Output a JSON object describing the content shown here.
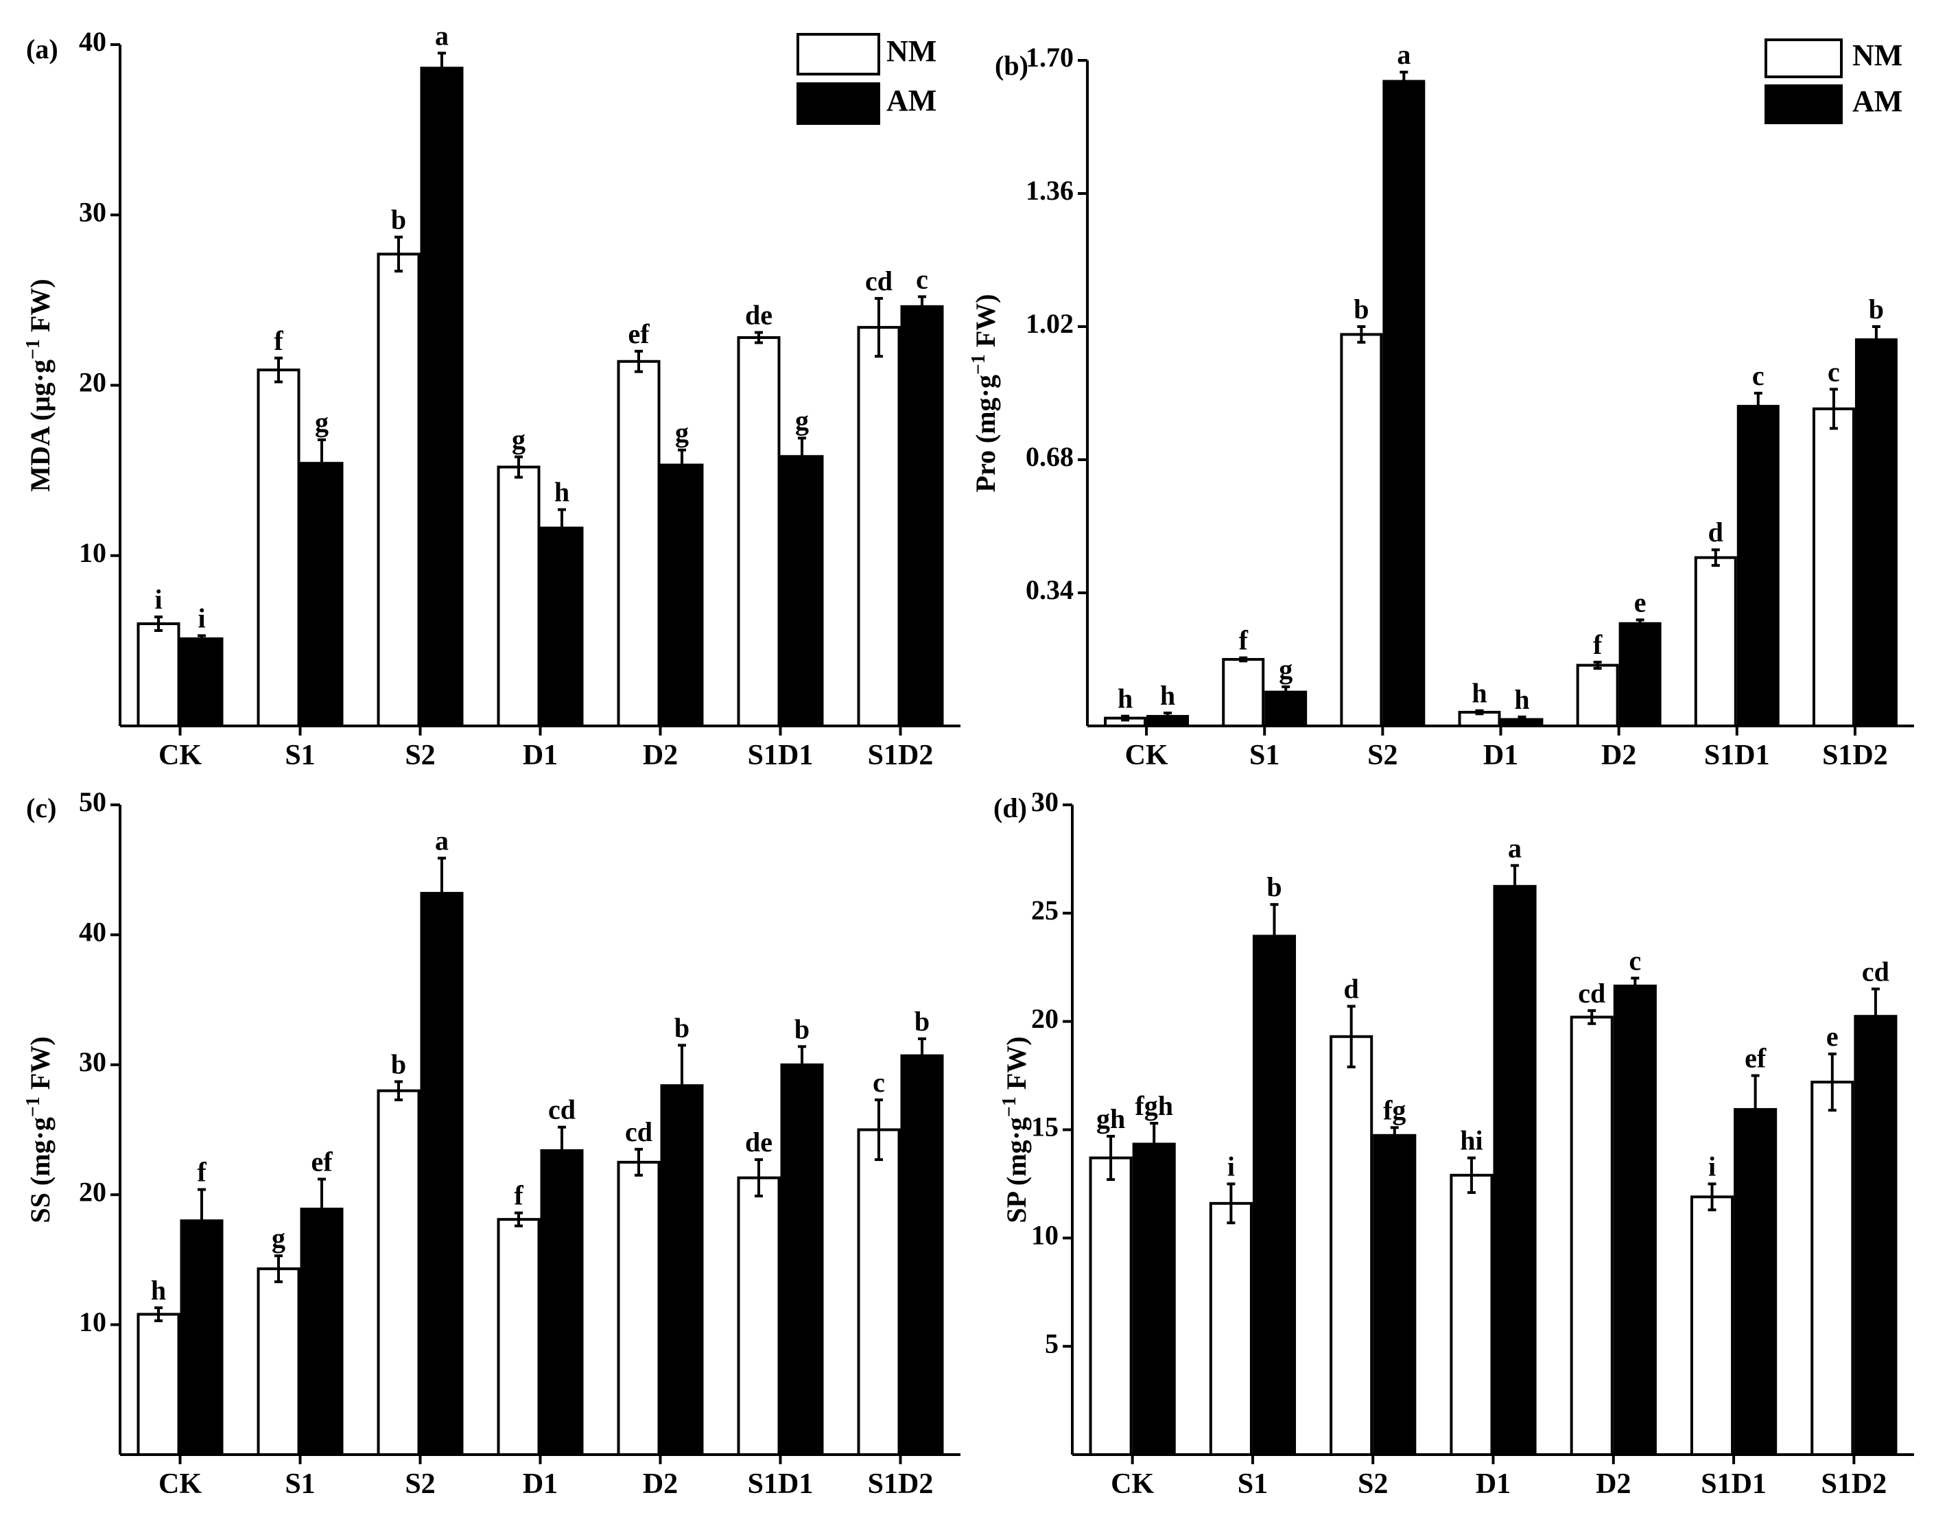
{
  "categories": [
    "CK",
    "S1",
    "S2",
    "D1",
    "D2",
    "S1D1",
    "S1D2"
  ],
  "legend": {
    "nm_label": "NM",
    "am_label": "AM"
  },
  "colors": {
    "nm_fill": "#ffffff",
    "am_fill": "#000000",
    "stroke": "#000000"
  },
  "chart_data": [
    {
      "id": "a",
      "type": "bar",
      "panel_label": "(a)",
      "ylabel": "MDA (μg·g⁻¹ FW)",
      "ylabel_parts": [
        "MDA (μg·g",
        "−1",
        " FW)"
      ],
      "ylim": [
        0,
        40
      ],
      "yticks": [
        10,
        20,
        30,
        40
      ],
      "tick_labels": [
        "10",
        "20",
        "30",
        "40"
      ],
      "legend_position": "top-right",
      "series": [
        {
          "name": "NM",
          "values": [
            6.0,
            20.9,
            27.7,
            15.2,
            21.4,
            22.8,
            23.4
          ],
          "errors": [
            0.4,
            0.7,
            1.0,
            0.6,
            0.6,
            0.3,
            1.7
          ],
          "letters": [
            "i",
            "f",
            "b",
            "g",
            "ef",
            "de",
            "cd"
          ]
        },
        {
          "name": "AM",
          "values": [
            5.2,
            15.5,
            38.7,
            11.7,
            15.4,
            15.9,
            24.7
          ],
          "errors": [
            0.1,
            1.3,
            0.8,
            1.0,
            0.8,
            1.0,
            0.5
          ],
          "letters": [
            "i",
            "g",
            "a",
            "h",
            "g",
            "g",
            "c"
          ]
        }
      ]
    },
    {
      "id": "b",
      "type": "bar",
      "panel_label": "(b)",
      "ylabel": "Pro (mg·g⁻¹ FW)",
      "ylabel_parts": [
        "Pro (mg·g",
        "−1",
        " FW)"
      ],
      "ylim": [
        0,
        1.7
      ],
      "yticks": [
        0.34,
        0.68,
        1.02,
        1.36,
        1.7
      ],
      "tick_labels": [
        "0.34",
        "0.68",
        "1.02",
        "1.36",
        "1.70"
      ],
      "legend_position": "top-right",
      "series": [
        {
          "name": "NM",
          "values": [
            0.02,
            0.17,
            1.0,
            0.035,
            0.155,
            0.43,
            0.81
          ],
          "errors": [
            0.005,
            0.004,
            0.02,
            0.004,
            0.008,
            0.02,
            0.05
          ],
          "letters": [
            "h",
            "f",
            "b",
            "h",
            "f",
            "d",
            "c"
          ]
        },
        {
          "name": "AM",
          "values": [
            0.028,
            0.09,
            1.65,
            0.02,
            0.265,
            0.82,
            0.99
          ],
          "errors": [
            0.005,
            0.01,
            0.02,
            0.003,
            0.006,
            0.03,
            0.03
          ],
          "letters": [
            "h",
            "g",
            "a",
            "h",
            "e",
            "c",
            "b"
          ]
        }
      ]
    },
    {
      "id": "c",
      "type": "bar",
      "panel_label": "(c)",
      "ylabel": "SS (mg·g⁻¹ FW)",
      "ylabel_parts": [
        "SS (mg·g",
        "−1",
        " FW)"
      ],
      "ylim": [
        0,
        50
      ],
      "yticks": [
        10,
        20,
        30,
        40,
        50
      ],
      "tick_labels": [
        "10",
        "20",
        "30",
        "40",
        "50"
      ],
      "legend_position": "none",
      "series": [
        {
          "name": "NM",
          "values": [
            10.8,
            14.3,
            28.0,
            18.1,
            22.5,
            21.3,
            25.0
          ],
          "errors": [
            0.5,
            1.0,
            0.7,
            0.5,
            1.0,
            1.4,
            2.3
          ],
          "letters": [
            "h",
            "g",
            "b",
            "f",
            "cd",
            "de",
            "c"
          ]
        },
        {
          "name": "AM",
          "values": [
            18.1,
            19.0,
            43.3,
            23.5,
            28.5,
            30.1,
            30.8
          ],
          "errors": [
            2.3,
            2.2,
            2.6,
            1.7,
            3.0,
            1.3,
            1.2
          ],
          "letters": [
            "f",
            "ef",
            "a",
            "cd",
            "b",
            "b",
            "b"
          ]
        }
      ]
    },
    {
      "id": "d",
      "type": "bar",
      "panel_label": "(d)",
      "ylabel": "SP (mg·g⁻¹ FW)",
      "ylabel_parts": [
        "SP (mg·g",
        "−1",
        " FW)"
      ],
      "ylim": [
        0,
        30
      ],
      "yticks": [
        5,
        10,
        15,
        20,
        25,
        30
      ],
      "tick_labels": [
        "5",
        "10",
        "15",
        "20",
        "25",
        "30"
      ],
      "legend_position": "none",
      "series": [
        {
          "name": "NM",
          "values": [
            13.7,
            11.6,
            19.3,
            12.9,
            20.2,
            11.9,
            17.2
          ],
          "errors": [
            1.0,
            0.9,
            1.4,
            0.8,
            0.3,
            0.6,
            1.3
          ],
          "letters": [
            "gh",
            "i",
            "d",
            "hi",
            "cd",
            "i",
            "e"
          ]
        },
        {
          "name": "AM",
          "values": [
            14.4,
            24.0,
            14.8,
            26.3,
            21.7,
            16.0,
            20.3
          ],
          "errors": [
            0.9,
            1.4,
            0.3,
            0.9,
            0.3,
            1.5,
            1.2
          ],
          "letters": [
            "fgh",
            "b",
            "fg",
            "a",
            "c",
            "ef",
            "cd"
          ]
        }
      ]
    }
  ]
}
